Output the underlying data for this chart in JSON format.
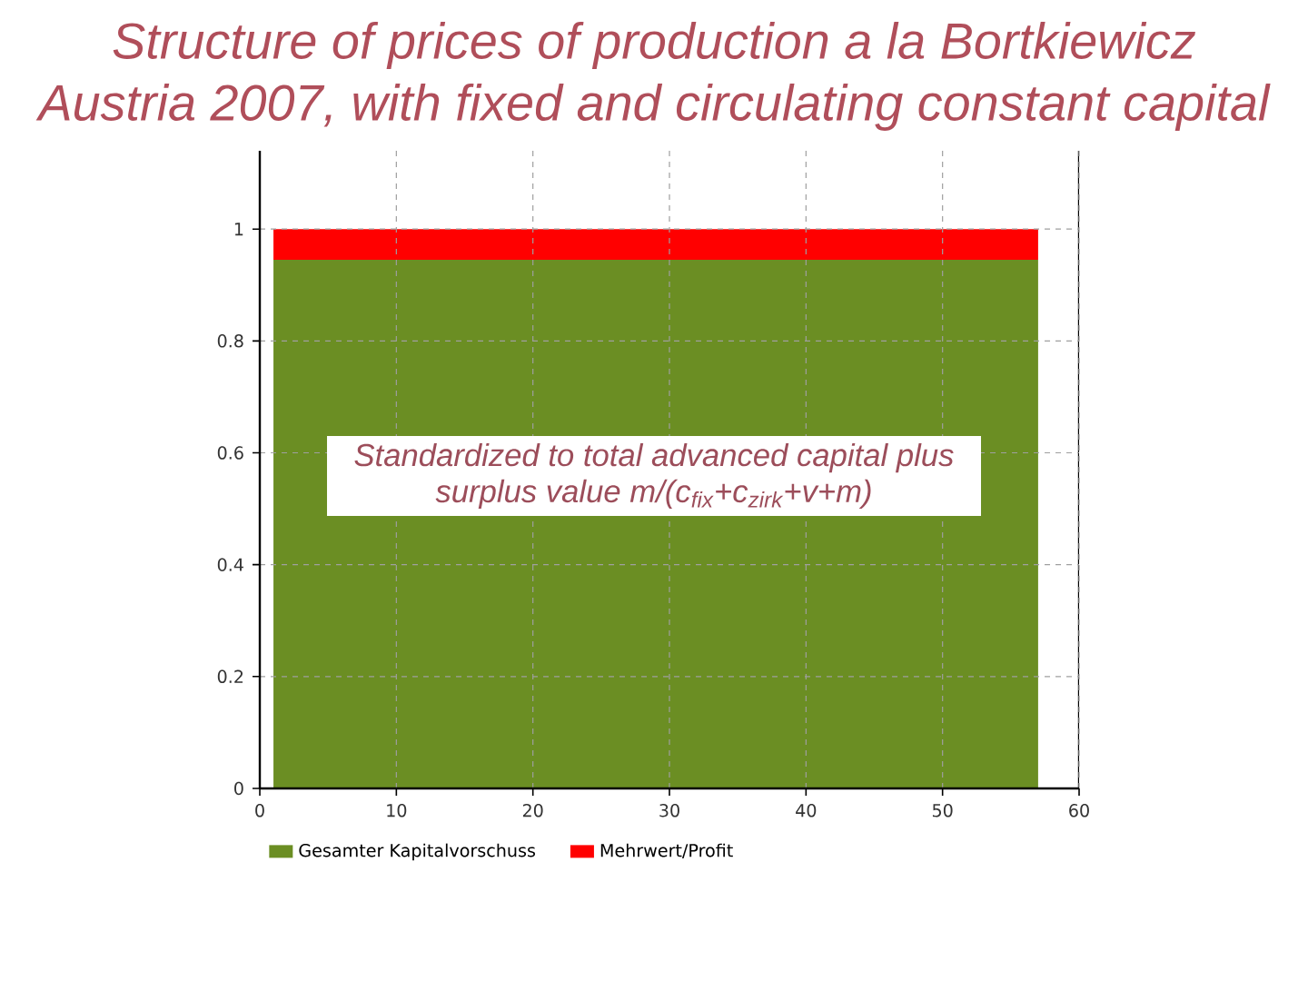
{
  "chart_data": {
    "type": "area",
    "title": "Structure of prices of production a la Bortkiewicz",
    "subtitle": "Austria 2007, with fixed and circulating constant capital",
    "annotations": [
      "Standardized to total advanced capital plus surplus value m/(c$_{fix}$+c$_{zirk}$+v+m)"
    ],
    "x": [
      1,
      57
    ],
    "series": [
      {
        "name": "Gesamter Kapitalvorschuss",
        "color": "#6b8e23",
        "values": [
          0.945,
          0.945
        ]
      },
      {
        "name": "Mehrwert/Profit",
        "color": "#ff0000",
        "values": [
          0.055,
          0.055
        ]
      }
    ],
    "stacked": true,
    "xlim": [
      0,
      60
    ],
    "xticks": [
      0,
      10,
      20,
      30,
      40,
      50,
      60
    ],
    "ylim": [
      0,
      1.14
    ],
    "yticks": [
      0,
      0.2,
      0.4,
      0.6,
      0.8,
      1
    ],
    "grid": true,
    "legend": "bottom"
  }
}
